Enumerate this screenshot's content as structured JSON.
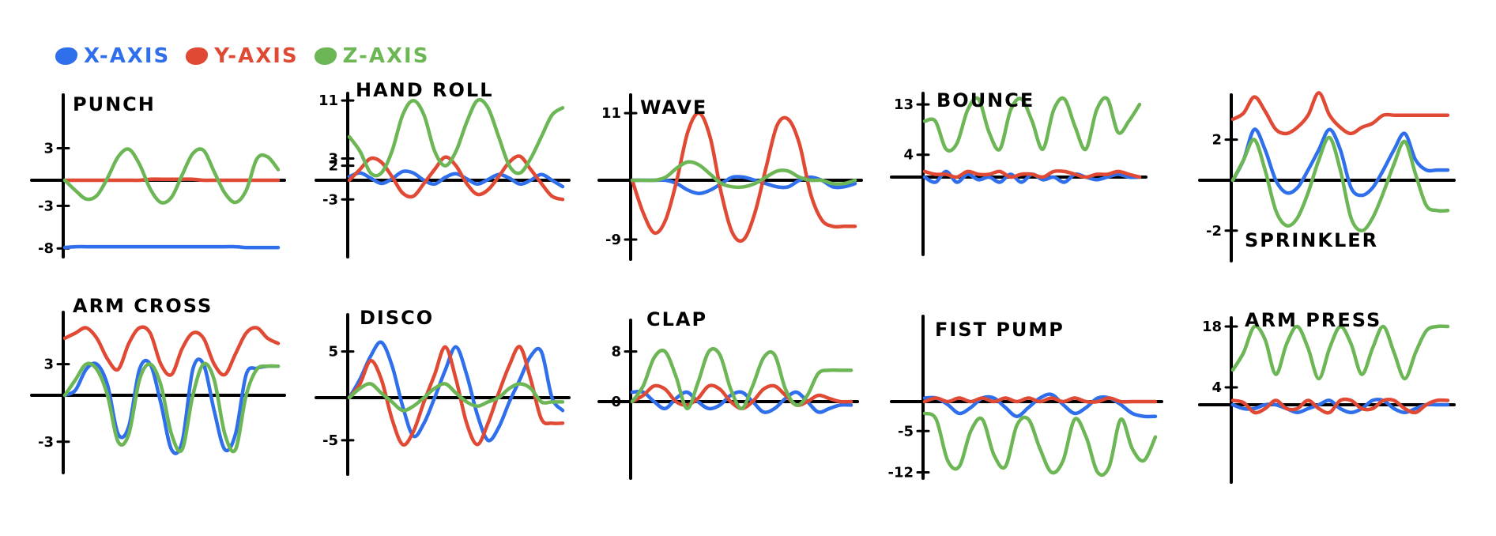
{
  "legend": {
    "items": [
      {
        "label": "X-AXIS",
        "color": "#2f6fec"
      },
      {
        "label": "Y-AXIS",
        "color": "#e04a34"
      },
      {
        "label": "Z-AXIS",
        "color": "#6db656"
      }
    ]
  },
  "colors": {
    "x": "#2f6fec",
    "y": "#e04a34",
    "z": "#6db656",
    "axis": "#000000"
  },
  "chart_data": [
    {
      "type": "line",
      "title": "PUNCH",
      "ticks": [
        3,
        -3,
        -8
      ],
      "ylim": [
        -9,
        8
      ],
      "grid": false,
      "x": [
        0,
        1,
        2,
        3,
        4,
        5,
        6,
        7,
        8,
        9,
        10,
        11,
        12,
        13,
        14,
        15,
        16,
        17,
        18,
        19,
        20
      ],
      "series": [
        {
          "key": "x",
          "values": [
            -7.9,
            -7.8,
            -7.8,
            -7.8,
            -7.8,
            -7.8,
            -7.8,
            -7.8,
            -7.8,
            -7.8,
            -7.8,
            -7.8,
            -7.8,
            -7.8,
            -7.8,
            -7.8,
            -7.8,
            -7.9,
            -7.9,
            -7.9,
            -7.9
          ]
        },
        {
          "key": "y",
          "values": [
            0,
            0,
            0,
            0,
            0,
            0,
            0,
            0,
            0.1,
            0.1,
            0.1,
            0.1,
            0.1,
            0,
            0,
            0,
            0,
            0,
            0,
            0,
            0
          ]
        },
        {
          "key": "z",
          "values": [
            0,
            -1.2,
            -2.2,
            -1.8,
            0.2,
            2.2,
            2.9,
            1.5,
            -1.0,
            -2.6,
            -2.0,
            0.5,
            2.5,
            2.8,
            0.8,
            -1.5,
            -2.6,
            -1.2,
            2.0,
            2.2,
            1.0
          ]
        }
      ]
    },
    {
      "type": "line",
      "title": "HAND ROLL",
      "ticks": [
        11,
        3,
        2,
        -3
      ],
      "ylim": [
        -12,
        12
      ],
      "grid": false,
      "x": [
        0,
        1,
        2,
        3,
        4,
        5,
        6,
        7,
        8,
        9,
        10,
        11,
        12,
        13,
        14,
        15,
        16,
        17,
        18,
        19,
        20
      ],
      "series": [
        {
          "key": "x",
          "values": [
            0.5,
            1.0,
            0.3,
            -0.5,
            0.2,
            1.2,
            1.0,
            0,
            -0.6,
            0.4,
            0.9,
            0.2,
            -0.6,
            0.1,
            0.8,
            0.3,
            -0.6,
            0,
            0.8,
            0,
            -1.0
          ]
        },
        {
          "key": "y",
          "values": [
            0,
            1.5,
            3.0,
            2.5,
            0.5,
            -2.0,
            -2.5,
            -0.5,
            1.5,
            3.2,
            2.0,
            -0.5,
            -2.2,
            -1.5,
            0.5,
            2.5,
            3.3,
            1.5,
            -0.5,
            -2.5,
            -3.0
          ]
        },
        {
          "key": "z",
          "values": [
            6,
            4,
            1,
            1,
            4,
            9,
            11,
            9,
            4,
            2,
            4,
            8,
            11,
            10,
            6,
            2,
            1,
            3,
            6,
            9,
            10
          ]
        }
      ]
    },
    {
      "type": "line",
      "title": "WAVE",
      "ticks": [
        11,
        -9
      ],
      "ylim": [
        -12,
        14
      ],
      "grid": false,
      "x": [
        0,
        1,
        2,
        3,
        4,
        5,
        6,
        7,
        8,
        9,
        10,
        11,
        12,
        13,
        14,
        15,
        16,
        17,
        18,
        19,
        20
      ],
      "series": [
        {
          "key": "x",
          "values": [
            0,
            0,
            0,
            0,
            -0.5,
            -1.5,
            -2.0,
            -1.5,
            -0.5,
            0.5,
            0.5,
            0,
            -0.5,
            -1.0,
            -1.0,
            0,
            0.5,
            0,
            -1.0,
            -1.0,
            -0.5
          ]
        },
        {
          "key": "y",
          "values": [
            0,
            -5,
            -8,
            -6,
            0,
            8,
            11,
            7,
            -2,
            -8,
            -9,
            -5,
            2,
            9,
            10,
            6,
            -2,
            -6,
            -7,
            -7,
            -7
          ]
        },
        {
          "key": "z",
          "values": [
            0,
            0,
            0,
            0.5,
            2.0,
            3.0,
            2.5,
            1.0,
            -0.5,
            -1.0,
            -1.0,
            -0.5,
            0.5,
            1.5,
            1.5,
            0.5,
            0,
            0,
            -0.5,
            -0.5,
            0
          ]
        }
      ]
    },
    {
      "type": "line",
      "title": "BOUNCE",
      "ticks": [
        13,
        4
      ],
      "ylim": [
        -15,
        15
      ],
      "grid": false,
      "x": [
        0,
        1,
        2,
        3,
        4,
        5,
        6,
        7,
        8,
        9,
        10,
        11,
        12,
        13,
        14,
        15,
        16,
        17,
        18,
        19,
        20
      ],
      "series": [
        {
          "key": "x",
          "values": [
            0,
            -1,
            1,
            -1,
            0.5,
            -0.5,
            0,
            -1,
            0.5,
            -1,
            0.5,
            -0.5,
            0,
            -1,
            0.5,
            0,
            -0.5,
            0,
            0.5,
            0,
            0
          ]
        },
        {
          "key": "y",
          "values": [
            1,
            0.5,
            0.5,
            0,
            1,
            0.5,
            0.5,
            1,
            0,
            0.5,
            0.5,
            0,
            1,
            1,
            0.5,
            0,
            0.5,
            0.5,
            1,
            0.5,
            0
          ]
        },
        {
          "key": "z",
          "values": [
            10,
            10,
            5,
            6,
            12,
            14,
            8,
            5,
            12,
            14,
            10,
            5,
            12,
            14,
            9,
            5,
            12,
            14,
            8,
            10,
            13
          ]
        }
      ]
    },
    {
      "type": "line",
      "title": "SPRINKLER",
      "ticks": [
        2,
        -2
      ],
      "ylim": [
        -3.2,
        4.2
      ],
      "grid": false,
      "x": [
        0,
        1,
        2,
        3,
        4,
        5,
        6,
        7,
        8,
        9,
        10,
        11,
        12,
        13,
        14,
        15,
        16,
        17,
        18,
        19,
        20
      ],
      "series": [
        {
          "key": "x",
          "values": [
            0,
            1.0,
            2.5,
            1.5,
            0,
            -0.5,
            -0.3,
            0.5,
            1.5,
            2.5,
            1.5,
            -0.3,
            -0.6,
            -0.3,
            0.5,
            1.5,
            2.3,
            1.0,
            0.5,
            0.5,
            0.5
          ]
        },
        {
          "key": "y",
          "values": [
            3.0,
            3.3,
            4.1,
            3.4,
            2.5,
            2.3,
            2.6,
            3.2,
            4.3,
            3.2,
            2.6,
            2.3,
            2.6,
            2.8,
            3.2,
            3.2,
            3.2,
            3.2,
            3.2,
            3.2,
            3.2
          ]
        },
        {
          "key": "z",
          "values": [
            0,
            1.0,
            2.0,
            0.5,
            -1.2,
            -1.8,
            -1.5,
            -0.5,
            1.0,
            2.1,
            0.5,
            -1.5,
            -2.0,
            -1.5,
            -0.5,
            0.8,
            1.9,
            0.3,
            -1.0,
            -1.2,
            -1.2
          ]
        }
      ]
    },
    {
      "type": "line",
      "title": "ARM CROSS",
      "ticks": [
        3,
        -3
      ],
      "ylim": [
        -5,
        8
      ],
      "grid": false,
      "x": [
        0,
        1,
        2,
        3,
        4,
        5,
        6,
        7,
        8,
        9,
        10,
        11,
        12,
        13,
        14,
        15,
        16,
        17,
        18,
        19,
        20
      ],
      "series": [
        {
          "key": "x",
          "values": [
            0,
            0.5,
            2.5,
            3.0,
            1.0,
            -2.5,
            -2.0,
            2.5,
            3.0,
            -0.5,
            -3.5,
            -3.0,
            2.5,
            3.0,
            -1.0,
            -3.5,
            -2.5,
            2.0,
            2.6,
            2.8,
            2.8
          ]
        },
        {
          "key": "y",
          "values": [
            5.5,
            6.0,
            6.5,
            5.5,
            3.5,
            2.5,
            5.0,
            6.5,
            6.0,
            3.0,
            2.0,
            4.5,
            6.0,
            5.5,
            3.0,
            2.0,
            4.0,
            6.0,
            6.5,
            5.5,
            5.0
          ]
        },
        {
          "key": "z",
          "values": [
            0,
            1.5,
            3.0,
            2.5,
            0,
            -3.0,
            -2.5,
            1.5,
            3.0,
            1.0,
            -2.5,
            -3.5,
            0,
            3.0,
            1.5,
            -2.5,
            -3.5,
            0,
            2.5,
            2.8,
            2.8
          ]
        }
      ]
    },
    {
      "type": "line",
      "title": "DISCO",
      "ticks": [
        5,
        -5
      ],
      "ylim": [
        -9,
        9
      ],
      "grid": false,
      "x": [
        0,
        1,
        2,
        3,
        4,
        5,
        6,
        7,
        8,
        9,
        10,
        11,
        12,
        13,
        14,
        15,
        16,
        17,
        18,
        19,
        20
      ],
      "series": [
        {
          "key": "x",
          "values": [
            0,
            2.0,
            4.5,
            6.0,
            3.5,
            -1.0,
            -4.5,
            -3.0,
            0,
            3.0,
            5.5,
            2.5,
            -2.0,
            -5.0,
            -3.5,
            -0.5,
            2.0,
            4.5,
            5.0,
            0,
            -1.5
          ]
        },
        {
          "key": "y",
          "values": [
            0,
            1.5,
            4.0,
            2.0,
            -2.5,
            -5.5,
            -4.0,
            -0.5,
            2.5,
            5.5,
            2.0,
            -3.0,
            -5.5,
            -3.0,
            0.5,
            3.5,
            5.5,
            2.0,
            -2.5,
            -3.0,
            -3.0
          ]
        },
        {
          "key": "z",
          "values": [
            0,
            1.0,
            1.5,
            0.5,
            -0.5,
            -1.5,
            -1.0,
            0,
            1.0,
            1.5,
            0.5,
            -0.5,
            -1.0,
            -0.5,
            0,
            1.0,
            1.5,
            1.0,
            -0.5,
            -0.5,
            -0.5
          ]
        }
      ]
    },
    {
      "type": "line",
      "title": "CLAP",
      "ticks": [
        8,
        0
      ],
      "ylim": [
        -11,
        13
      ],
      "grid": false,
      "x": [
        0,
        1,
        2,
        3,
        4,
        5,
        6,
        7,
        8,
        9,
        10,
        11,
        12,
        13,
        14,
        15,
        16,
        17,
        18,
        19,
        20
      ],
      "series": [
        {
          "key": "x",
          "values": [
            1.5,
            1.5,
            0,
            -1.0,
            0.5,
            1.5,
            0,
            -1.0,
            -0.5,
            1.0,
            1.5,
            0,
            -1.5,
            -1.0,
            0.5,
            1.5,
            0,
            -1.5,
            -1.0,
            -0.5,
            -0.5
          ]
        },
        {
          "key": "y",
          "values": [
            0,
            1.0,
            2.5,
            2.0,
            0,
            -0.5,
            0.5,
            2.5,
            2.0,
            0,
            -1.0,
            0,
            2.0,
            2.5,
            1.0,
            -0.5,
            0,
            1.0,
            0.5,
            0,
            0
          ]
        },
        {
          "key": "z",
          "values": [
            0,
            2.5,
            7.0,
            8.0,
            4.0,
            -1.0,
            3.0,
            8.0,
            7.5,
            2.0,
            -1.0,
            2.5,
            7.0,
            7.5,
            2.0,
            -0.5,
            1.0,
            4.5,
            5.0,
            5.0,
            5.0
          ]
        }
      ]
    },
    {
      "type": "line",
      "title": "FIST PUMP",
      "ticks": [
        -5,
        -12
      ],
      "ylim": [
        -13,
        12
      ],
      "grid": false,
      "x": [
        0,
        1,
        2,
        3,
        4,
        5,
        6,
        7,
        8,
        9,
        10,
        11,
        12,
        13,
        14,
        15,
        16,
        17,
        18,
        19,
        20
      ],
      "series": [
        {
          "key": "x",
          "values": [
            0.5,
            0.5,
            -0.5,
            -2.0,
            -1.0,
            0.5,
            0.5,
            -1.0,
            -2.5,
            -1.0,
            0.5,
            1.0,
            -0.5,
            -2.0,
            -1.0,
            0.5,
            0.5,
            -0.5,
            -2.0,
            -2.5,
            -2.5
          ]
        },
        {
          "key": "y",
          "values": [
            0,
            0.5,
            0,
            0.5,
            0,
            0.5,
            0,
            0.5,
            0,
            0.5,
            0,
            0.5,
            0,
            0.5,
            0,
            0,
            0.5,
            0,
            0,
            0,
            0
          ]
        },
        {
          "key": "z",
          "values": [
            -2,
            -3,
            -10,
            -11,
            -5,
            -3,
            -9,
            -11,
            -4,
            -3,
            -8,
            -12,
            -10,
            -3,
            -6,
            -12,
            -11,
            -3,
            -8,
            -10,
            -6
          ]
        }
      ]
    },
    {
      "type": "line",
      "title": "ARM PRESS",
      "ticks": [
        18,
        4
      ],
      "ylim": [
        -20,
        20
      ],
      "grid": false,
      "x": [
        0,
        1,
        2,
        3,
        4,
        5,
        6,
        7,
        8,
        9,
        10,
        11,
        12,
        13,
        14,
        15,
        16,
        17,
        18,
        19,
        20
      ],
      "series": [
        {
          "key": "x",
          "values": [
            0,
            -1,
            -1,
            0,
            0,
            -1,
            -2,
            -1,
            0,
            1,
            -1,
            -2,
            -1,
            1,
            1,
            -1,
            -2,
            -1,
            0,
            0,
            0
          ]
        },
        {
          "key": "y",
          "values": [
            1,
            0.5,
            -2,
            -1,
            1,
            -1,
            -1,
            1,
            -1,
            -2,
            1,
            1,
            -1,
            -1,
            1,
            1,
            -1,
            -2,
            0,
            1,
            1
          ]
        },
        {
          "key": "z",
          "values": [
            8,
            12,
            18,
            15,
            7,
            14,
            18,
            13,
            6,
            13,
            18,
            14,
            7,
            13,
            18,
            12,
            6,
            12,
            17,
            18,
            18
          ]
        }
      ]
    }
  ]
}
